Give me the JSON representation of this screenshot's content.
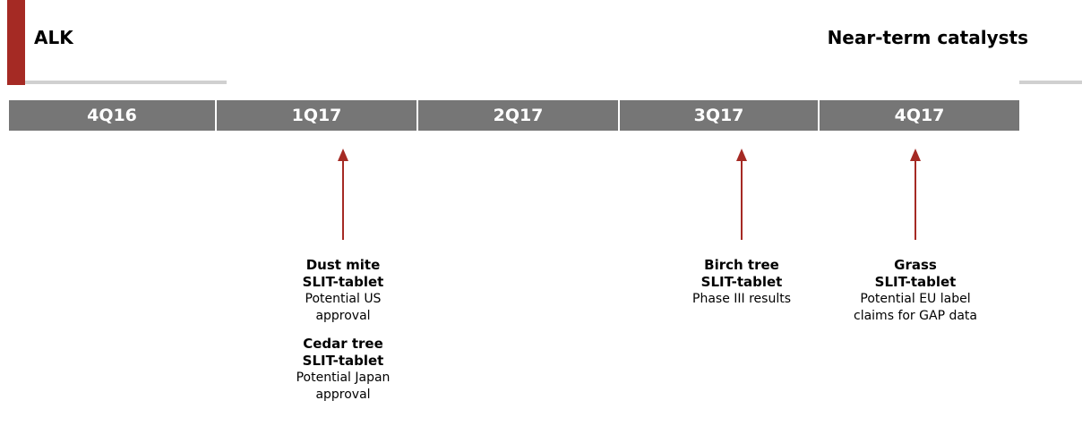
{
  "header": {
    "company": "ALK",
    "title": "Near-term catalysts"
  },
  "timeline": {
    "quarters": [
      "4Q16",
      "1Q17",
      "2Q17",
      "3Q17",
      "4Q17"
    ]
  },
  "events": [
    [
      {
        "title": [
          "Dust mite",
          "SLIT-tablet"
        ],
        "detail": [
          "Potential US",
          "approval"
        ]
      },
      {
        "title": [
          "Cedar tree",
          "SLIT-tablet"
        ],
        "detail": [
          "Potential Japan",
          "approval"
        ]
      }
    ],
    [
      {
        "title": [
          "Birch tree",
          "SLIT-tablet"
        ],
        "detail": [
          "Phase III results"
        ]
      }
    ],
    [
      {
        "title": [
          "Grass",
          "SLIT-tablet"
        ],
        "detail": [
          "Potential EU label",
          "claims for GAP data"
        ]
      }
    ]
  ]
}
